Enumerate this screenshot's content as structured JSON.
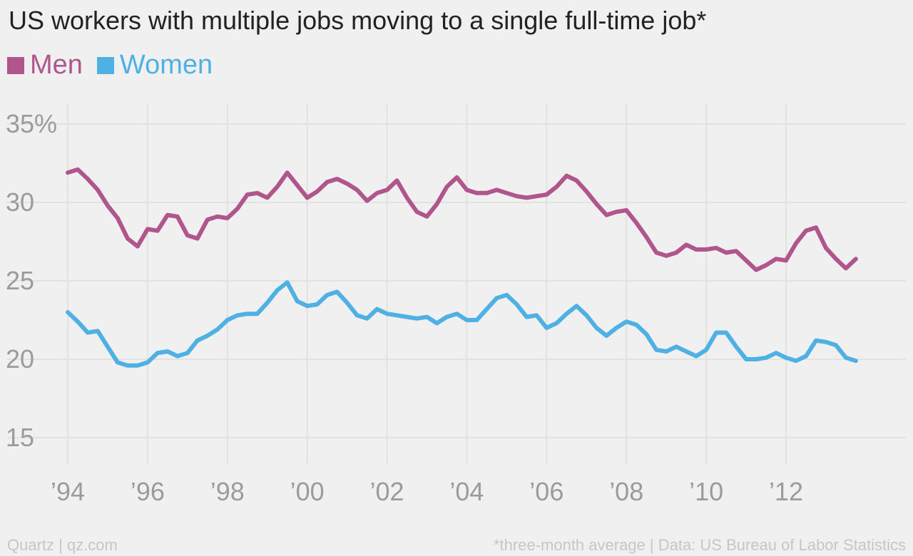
{
  "chart_data": {
    "type": "line",
    "title": "US workers with multiple jobs moving to a single full-time job*",
    "xlabel": "",
    "ylabel": "",
    "ylim": [
      15,
      35
    ],
    "xlim": [
      1994,
      2014
    ],
    "x_ticks": [
      1994,
      1996,
      1998,
      2000,
      2002,
      2004,
      2006,
      2008,
      2010,
      2012
    ],
    "x_tick_labels": [
      "’94",
      "’96",
      "’98",
      "’00",
      "’02",
      "’04",
      "’06",
      "’08",
      "’10",
      "’12"
    ],
    "y_ticks": [
      15,
      20,
      25,
      30,
      35
    ],
    "y_tick_labels": [
      "15",
      "20",
      "25",
      "30",
      "35%"
    ],
    "grid": true,
    "legend_position": "top-left",
    "series": [
      {
        "name": "Men",
        "color": "#b0568c",
        "x": [
          1994.0,
          1994.25,
          1994.5,
          1994.75,
          1995.0,
          1995.25,
          1995.5,
          1995.75,
          1996.0,
          1996.25,
          1996.5,
          1996.75,
          1997.0,
          1997.25,
          1997.5,
          1997.75,
          1998.0,
          1998.25,
          1998.5,
          1998.75,
          1999.0,
          1999.25,
          1999.5,
          1999.75,
          2000.0,
          2000.25,
          2000.5,
          2000.75,
          2001.0,
          2001.25,
          2001.5,
          2001.75,
          2002.0,
          2002.25,
          2002.5,
          2002.75,
          2003.0,
          2003.25,
          2003.5,
          2003.75,
          2004.0,
          2004.25,
          2004.5,
          2004.75,
          2005.0,
          2005.25,
          2005.5,
          2005.75,
          2006.0,
          2006.25,
          2006.5,
          2006.75,
          2007.0,
          2007.25,
          2007.5,
          2007.75,
          2008.0,
          2008.25,
          2008.5,
          2008.75,
          2009.0,
          2009.25,
          2009.5,
          2009.75,
          2010.0,
          2010.25,
          2010.5,
          2010.75,
          2011.0,
          2011.25,
          2011.5,
          2011.75,
          2012.0,
          2012.25,
          2012.5,
          2012.75,
          2013.0,
          2013.25,
          2013.5,
          2013.75
        ],
        "values": [
          31.9,
          32.1,
          31.5,
          30.8,
          29.8,
          29.0,
          27.7,
          27.2,
          28.3,
          28.2,
          29.2,
          29.1,
          27.9,
          27.7,
          28.9,
          29.1,
          29.0,
          29.6,
          30.5,
          30.6,
          30.3,
          31.0,
          31.9,
          31.1,
          30.3,
          30.7,
          31.3,
          31.5,
          31.2,
          30.8,
          30.1,
          30.6,
          30.8,
          31.4,
          30.3,
          29.4,
          29.1,
          29.9,
          31.0,
          31.6,
          30.8,
          30.6,
          30.6,
          30.8,
          30.6,
          30.4,
          30.3,
          30.4,
          30.5,
          31.0,
          31.7,
          31.4,
          30.7,
          29.9,
          29.2,
          29.4,
          29.5,
          28.7,
          27.8,
          26.8,
          26.6,
          26.8,
          27.3,
          27.0,
          27.0,
          27.1,
          26.8,
          26.9,
          26.3,
          25.7,
          26.0,
          26.4,
          26.3,
          27.4,
          28.2,
          28.4,
          27.1,
          26.4,
          25.8,
          26.4
        ]
      },
      {
        "name": "Women",
        "color": "#4fb1e3",
        "x": [
          1994.0,
          1994.25,
          1994.5,
          1994.75,
          1995.0,
          1995.25,
          1995.5,
          1995.75,
          1996.0,
          1996.25,
          1996.5,
          1996.75,
          1997.0,
          1997.25,
          1997.5,
          1997.75,
          1998.0,
          1998.25,
          1998.5,
          1998.75,
          1999.0,
          1999.25,
          1999.5,
          1999.75,
          2000.0,
          2000.25,
          2000.5,
          2000.75,
          2001.0,
          2001.25,
          2001.5,
          2001.75,
          2002.0,
          2002.25,
          2002.5,
          2002.75,
          2003.0,
          2003.25,
          2003.5,
          2003.75,
          2004.0,
          2004.25,
          2004.5,
          2004.75,
          2005.0,
          2005.25,
          2005.5,
          2005.75,
          2006.0,
          2006.25,
          2006.5,
          2006.75,
          2007.0,
          2007.25,
          2007.5,
          2007.75,
          2008.0,
          2008.25,
          2008.5,
          2008.75,
          2009.0,
          2009.25,
          2009.5,
          2009.75,
          2010.0,
          2010.25,
          2010.5,
          2010.75,
          2011.0,
          2011.25,
          2011.5,
          2011.75,
          2012.0,
          2012.25,
          2012.5,
          2012.75,
          2013.0,
          2013.25,
          2013.5,
          2013.75
        ],
        "values": [
          23.0,
          22.4,
          21.7,
          21.8,
          20.8,
          19.8,
          19.6,
          19.6,
          19.8,
          20.4,
          20.5,
          20.2,
          20.4,
          21.2,
          21.5,
          21.9,
          22.5,
          22.8,
          22.9,
          22.9,
          23.6,
          24.4,
          24.9,
          23.7,
          23.4,
          23.5,
          24.1,
          24.3,
          23.6,
          22.8,
          22.6,
          23.2,
          22.9,
          22.8,
          22.7,
          22.6,
          22.7,
          22.3,
          22.7,
          22.9,
          22.5,
          22.5,
          23.2,
          23.9,
          24.1,
          23.5,
          22.7,
          22.8,
          22.0,
          22.3,
          22.9,
          23.4,
          22.8,
          22.0,
          21.5,
          22.0,
          22.4,
          22.2,
          21.6,
          20.6,
          20.5,
          20.8,
          20.5,
          20.2,
          20.6,
          21.7,
          21.7,
          20.8,
          20.0,
          20.0,
          20.1,
          20.4,
          20.1,
          19.9,
          20.2,
          21.2,
          21.1,
          20.9,
          20.1,
          19.9
        ]
      }
    ]
  },
  "footer": {
    "source": "Quartz | qz.com",
    "note": "*three-month average | Data: US Bureau of Labor Statistics"
  }
}
